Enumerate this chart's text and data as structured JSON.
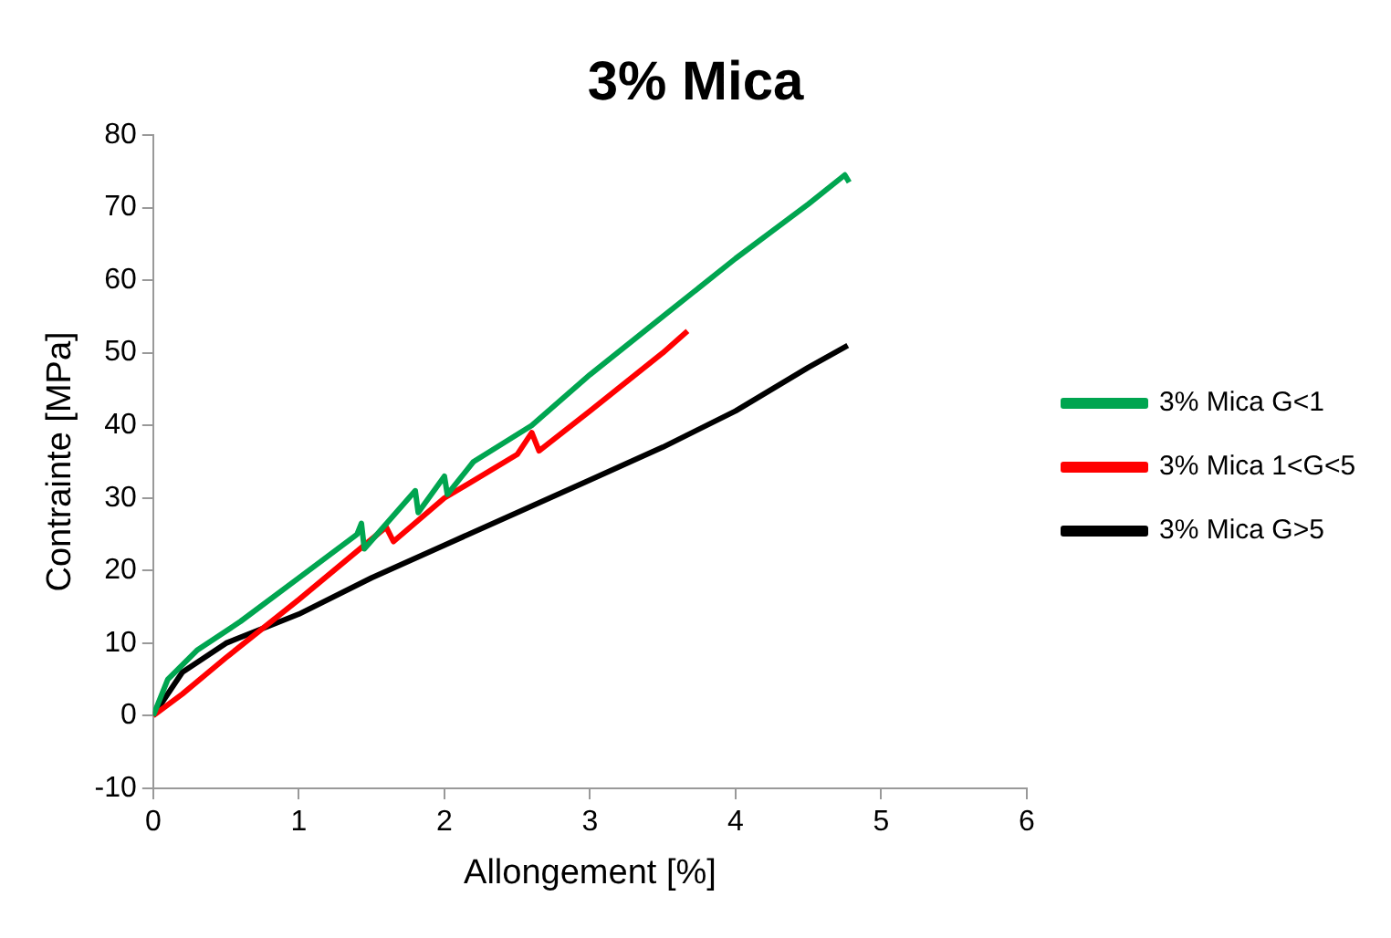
{
  "chart_data": {
    "type": "line",
    "title": "3% Mica",
    "xlabel": "Allongement [%]",
    "ylabel": "Contrainte [MPa]",
    "xlim": [
      0,
      6
    ],
    "xticks": [
      0,
      1,
      2,
      3,
      4,
      5,
      6
    ],
    "ylim": [
      -10,
      80
    ],
    "yticks": [
      -10,
      0,
      10,
      20,
      30,
      40,
      50,
      60,
      70,
      80
    ],
    "grid": false,
    "legend": "right",
    "marker": "none",
    "line_style": "solid",
    "series": [
      {
        "name": "3% Mica G<1",
        "color": "#00a550",
        "x": [
          0,
          0.1,
          0.3,
          0.6,
          1,
          1.4,
          1.43,
          1.45,
          1.8,
          1.82,
          2,
          2.02,
          2.2,
          2.6,
          3,
          3.5,
          4,
          4.5,
          4.75,
          4.78
        ],
        "values": [
          0,
          5,
          9,
          13,
          19,
          25,
          26.5,
          23,
          31,
          28,
          33,
          30.5,
          35,
          40,
          47,
          55,
          63,
          70.5,
          74.5,
          73.5
        ]
      },
      {
        "name": "3% Mica 1<G<5",
        "color": "#ff0000",
        "x": [
          0,
          0.2,
          0.5,
          1,
          1.3,
          1.6,
          1.65,
          2,
          2.5,
          2.6,
          2.65,
          3,
          3.5,
          3.67
        ],
        "values": [
          0,
          3,
          8,
          16,
          21,
          26,
          24,
          30,
          36,
          39,
          36.5,
          42,
          50,
          53
        ]
      },
      {
        "name": "3% Mica G>5",
        "color": "#000000",
        "x": [
          0,
          0.2,
          0.5,
          1,
          1.5,
          2,
          2.5,
          3,
          3.5,
          4,
          4.5,
          4.77
        ],
        "values": [
          0,
          6,
          10,
          14,
          19,
          23.5,
          28,
          32.5,
          37,
          42,
          48,
          51
        ]
      }
    ]
  }
}
